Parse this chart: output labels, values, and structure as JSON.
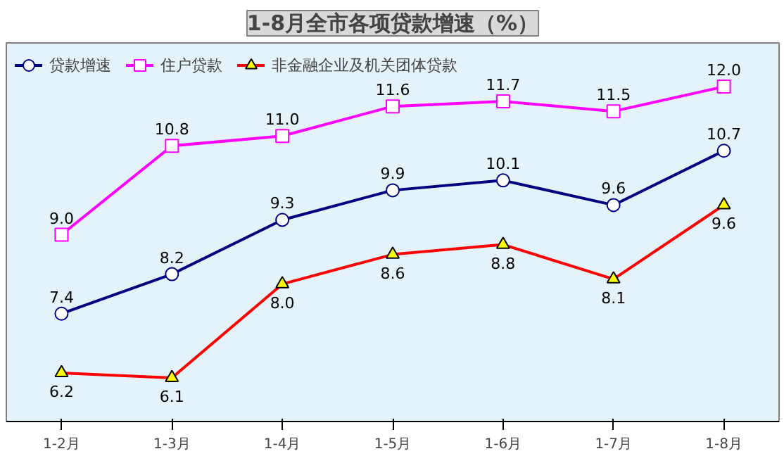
{
  "chart_data": {
    "type": "line",
    "title": "1-8月全市各项贷款增速（%）",
    "categories": [
      "1-2月",
      "1-3月",
      "1-4月",
      "1-5月",
      "1-6月",
      "1-7月",
      "1-8月"
    ],
    "series": [
      {
        "name": "贷款增速",
        "color": "#000080",
        "marker": "circle",
        "values": [
          7.4,
          8.2,
          9.3,
          9.9,
          10.1,
          9.6,
          10.7
        ],
        "value_labels": [
          "7.4",
          "8.2",
          "9.3",
          "9.9",
          "10.1",
          "9.6",
          "10.7"
        ]
      },
      {
        "name": "住户贷款",
        "color": "#ff00ff",
        "marker": "square",
        "values": [
          9.0,
          10.8,
          11.0,
          11.6,
          11.7,
          11.5,
          12.0
        ],
        "value_labels": [
          "9.0",
          "10.8",
          "11.0",
          "11.6",
          "11.7",
          "11.5",
          "12.0"
        ]
      },
      {
        "name": "非金融企业及机关团体贷款",
        "color": "#ff0000",
        "marker": "triangle",
        "values": [
          6.2,
          6.1,
          8.0,
          8.6,
          8.8,
          8.1,
          9.6
        ],
        "value_labels": [
          "6.2",
          "6.1",
          "8.0",
          "8.6",
          "8.8",
          "8.1",
          "9.6"
        ]
      }
    ],
    "legend": "top left",
    "tick_labels": "x",
    "line_style": "solid"
  }
}
